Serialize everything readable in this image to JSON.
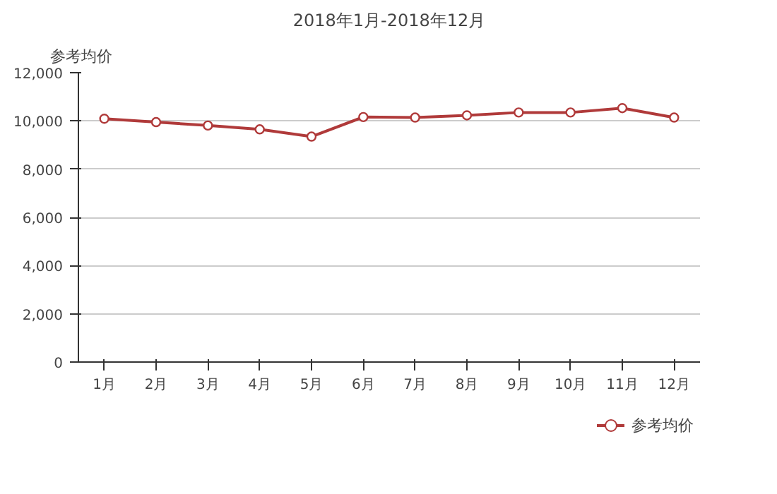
{
  "chart_data": {
    "type": "line",
    "title": "2018年1月-2018年12月",
    "ylabel": "参考均价",
    "categories": [
      "1月",
      "2月",
      "3月",
      "4月",
      "5月",
      "6月",
      "7月",
      "8月",
      "9月",
      "10月",
      "11月",
      "12月"
    ],
    "series": [
      {
        "name": "参考均价",
        "color": "#b03a3a",
        "values": [
          10090,
          9950,
          9810,
          9650,
          9350,
          10160,
          10140,
          10230,
          10350,
          10350,
          10530,
          10140
        ]
      }
    ],
    "ylim": [
      0,
      12000
    ],
    "yticks": [
      {
        "value": 0,
        "label": "0"
      },
      {
        "value": 2000,
        "label": "2,000"
      },
      {
        "value": 4000,
        "label": "4,000"
      },
      {
        "value": 6000,
        "label": "6,000"
      },
      {
        "value": 8000,
        "label": "8,000"
      },
      {
        "value": 10000,
        "label": "10,000"
      },
      {
        "value": 12000,
        "label": "12,000"
      }
    ],
    "grid": "y",
    "legend": "bottom right",
    "marker": "circle",
    "line_style": "solid"
  }
}
